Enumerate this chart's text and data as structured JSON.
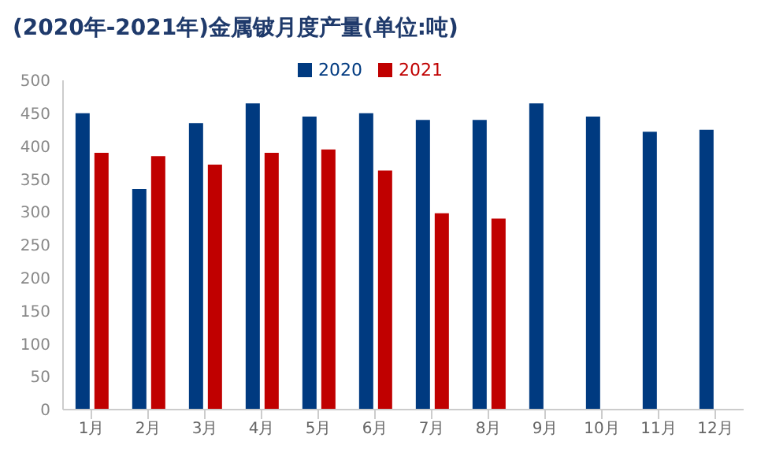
{
  "chart_data": {
    "type": "bar",
    "title": "(2020年-2021年)金属铍月度产量(单位:吨)",
    "categories": [
      "1月",
      "2月",
      "3月",
      "4月",
      "5月",
      "6月",
      "7月",
      "8月",
      "9月",
      "10月",
      "11月",
      "12月"
    ],
    "series": [
      {
        "name": "2020",
        "color": "#003a80",
        "values": [
          450,
          335,
          435,
          465,
          445,
          450,
          440,
          440,
          465,
          445,
          422,
          425
        ]
      },
      {
        "name": "2021",
        "color": "#c00000",
        "values": [
          390,
          385,
          372,
          390,
          395,
          363,
          298,
          290,
          null,
          null,
          null,
          null
        ]
      }
    ],
    "ylim": [
      0,
      500
    ],
    "yticks": [
      0,
      50,
      100,
      150,
      200,
      250,
      300,
      350,
      400,
      450,
      500
    ],
    "grid": false,
    "legend": "top"
  }
}
